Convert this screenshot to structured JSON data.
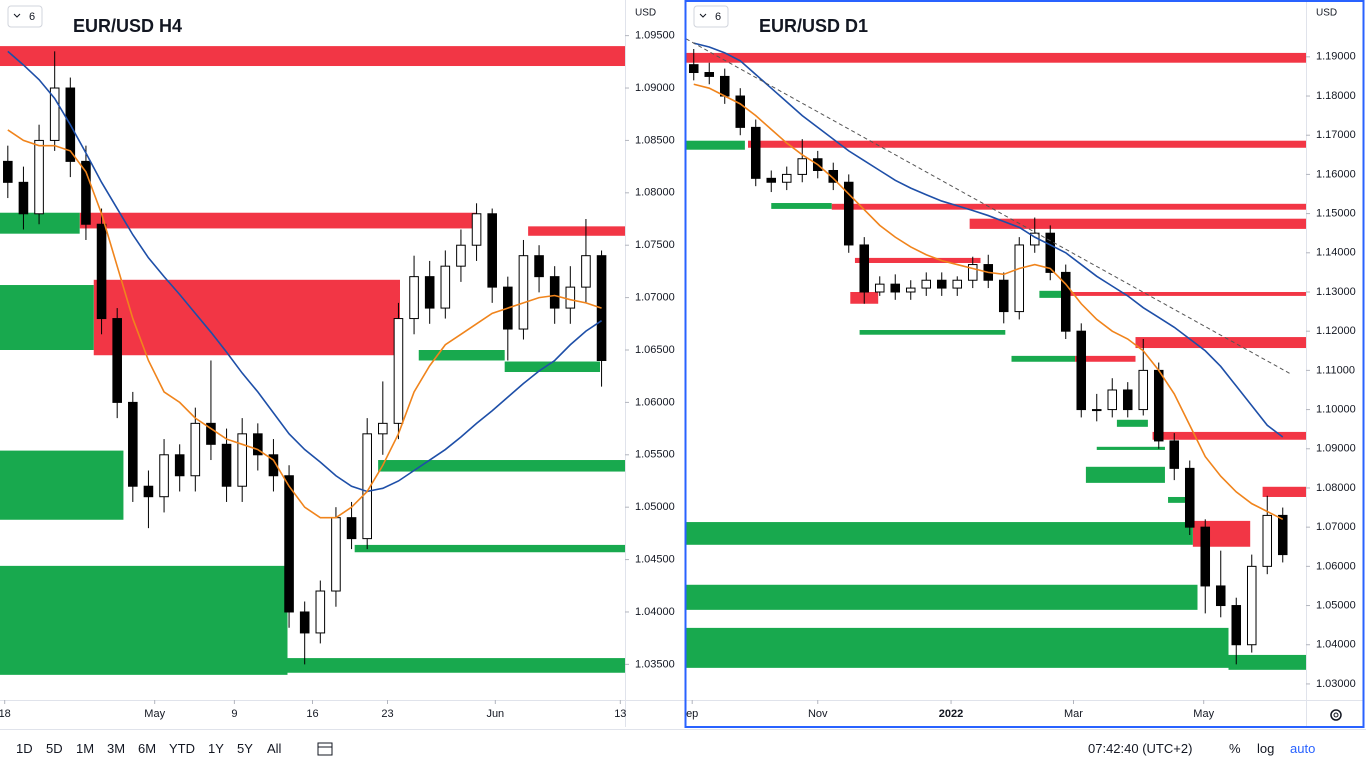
{
  "chart_data": [
    {
      "type": "candlestick",
      "title": "EUR/USD H4",
      "selector": "6",
      "y_unit": "USD",
      "candle_color": "#000000",
      "xlim": [
        0,
        40
      ],
      "ylim": [
        1.0316,
        1.0984
      ],
      "xticks": [
        {
          "value": 0.3,
          "label": "18"
        },
        {
          "value": 9.9,
          "label": "May"
        },
        {
          "value": 15,
          "label": "9"
        },
        {
          "value": 20,
          "label": "16"
        },
        {
          "value": 24.8,
          "label": "23"
        },
        {
          "value": 31.7,
          "label": "Jun"
        },
        {
          "value": 39.7,
          "label": "13"
        }
      ],
      "yticks": [
        {
          "value": 1.035,
          "label": "1.03500"
        },
        {
          "value": 1.04,
          "label": "1.04000"
        },
        {
          "value": 1.045,
          "label": "1.04500"
        },
        {
          "value": 1.05,
          "label": "1.05000"
        },
        {
          "value": 1.055,
          "label": "1.05500"
        },
        {
          "value": 1.06,
          "label": "1.06000"
        },
        {
          "value": 1.065,
          "label": "1.06500"
        },
        {
          "value": 1.07,
          "label": "1.07000"
        },
        {
          "value": 1.075,
          "label": "1.07500"
        },
        {
          "value": 1.08,
          "label": "1.08000"
        },
        {
          "value": 1.085,
          "label": "1.08500"
        },
        {
          "value": 1.09,
          "label": "1.09000"
        },
        {
          "value": 1.095,
          "label": "1.09500"
        }
      ],
      "open": [
        1.083,
        1.081,
        1.078,
        1.085,
        1.09,
        1.083,
        1.077,
        1.068,
        1.06,
        1.052,
        1.051,
        1.055,
        1.053,
        1.058,
        1.056,
        1.052,
        1.057,
        1.055,
        1.053,
        1.04,
        1.038,
        1.042,
        1.049,
        1.047,
        1.057,
        1.058,
        1.068,
        1.072,
        1.069,
        1.073,
        1.075,
        1.078,
        1.071,
        1.067,
        1.074,
        1.072,
        1.069,
        1.071,
        1.074
      ],
      "high": [
        1.0845,
        1.0825,
        1.0865,
        1.0935,
        1.091,
        1.0845,
        1.0785,
        1.069,
        1.061,
        1.0535,
        1.0565,
        1.056,
        1.0595,
        1.064,
        1.0575,
        1.0585,
        1.058,
        1.0565,
        1.054,
        1.041,
        1.043,
        1.05,
        1.0505,
        1.0585,
        1.062,
        1.0695,
        1.074,
        1.0735,
        1.0745,
        1.0765,
        1.079,
        1.0785,
        1.072,
        1.0755,
        1.075,
        1.073,
        1.073,
        1.0775,
        1.0745
      ],
      "low": [
        1.0795,
        1.0765,
        1.077,
        1.084,
        1.0815,
        1.0755,
        1.0665,
        1.0585,
        1.0505,
        1.048,
        1.0495,
        1.0515,
        1.0515,
        1.0545,
        1.0505,
        1.0505,
        1.0535,
        1.0515,
        1.0385,
        1.035,
        1.037,
        1.0405,
        1.046,
        1.046,
        1.055,
        1.0565,
        1.0665,
        1.0675,
        1.068,
        1.0715,
        1.0735,
        1.0695,
        1.064,
        1.066,
        1.0705,
        1.0675,
        1.0675,
        1.0695,
        1.0615
      ],
      "close": [
        1.081,
        1.078,
        1.085,
        1.09,
        1.083,
        1.077,
        1.068,
        1.06,
        1.052,
        1.051,
        1.055,
        1.053,
        1.058,
        1.056,
        1.052,
        1.057,
        1.055,
        1.053,
        1.04,
        1.038,
        1.042,
        1.049,
        1.047,
        1.057,
        1.058,
        1.068,
        1.072,
        1.069,
        1.073,
        1.075,
        1.078,
        1.071,
        1.067,
        1.074,
        1.072,
        1.069,
        1.071,
        1.074,
        1.064
      ],
      "series": [
        {
          "color": "#1e4fa8",
          "values": [
            1.0935,
            1.0922,
            1.0908,
            1.089,
            1.0865,
            1.0838,
            1.081,
            1.0785,
            1.076,
            1.0738,
            1.072,
            1.0703,
            1.0685,
            1.0667,
            1.0648,
            1.0628,
            1.061,
            1.059,
            1.057,
            1.0555,
            1.0543,
            1.053,
            1.052,
            1.0515,
            1.0518,
            1.0525,
            1.0535,
            1.0545,
            1.0555,
            1.0567,
            1.058,
            1.0592,
            1.0605,
            1.0618,
            1.063,
            1.064,
            1.0655,
            1.0668,
            1.0678
          ]
        },
        {
          "color": "#f0841c",
          "values": [
            1.086,
            1.085,
            1.0845,
            1.0845,
            1.084,
            1.082,
            1.078,
            1.073,
            1.068,
            1.064,
            1.061,
            1.06,
            1.0585,
            1.0575,
            1.0565,
            1.056,
            1.0555,
            1.0545,
            1.052,
            1.05,
            1.049,
            1.049,
            1.05,
            1.0515,
            1.054,
            1.057,
            1.061,
            1.0635,
            1.0655,
            1.0665,
            1.0675,
            1.0685,
            1.069,
            1.0695,
            1.07,
            1.0702,
            1.0698,
            1.0695,
            1.069
          ]
        }
      ],
      "zones": [
        {
          "color": "#f23645",
          "top": 1.094,
          "bottom": 1.0921,
          "x_range": [
            0,
            40
          ]
        },
        {
          "color": "#f23645",
          "top": 1.0781,
          "bottom": 1.0766,
          "x_range": [
            5.1,
            30.5
          ]
        },
        {
          "color": "#f23645",
          "top": 1.0768,
          "bottom": 1.0759,
          "x_range": [
            33.8,
            40
          ]
        },
        {
          "color": "#f23645",
          "top": 1.0717,
          "bottom": 1.0645,
          "x_range": [
            6.0,
            25.6
          ]
        },
        {
          "color": "#18a94e",
          "top": 1.0781,
          "bottom": 1.0761,
          "x_range": [
            0,
            5.1
          ]
        },
        {
          "color": "#18a94e",
          "top": 1.0712,
          "bottom": 1.065,
          "x_range": [
            0,
            6.0
          ]
        },
        {
          "color": "#18a94e",
          "top": 1.065,
          "bottom": 1.064,
          "x_range": [
            26.8,
            32.3
          ]
        },
        {
          "color": "#18a94e",
          "top": 1.0639,
          "bottom": 1.0629,
          "x_range": [
            32.3,
            38.4
          ]
        },
        {
          "color": "#18a94e",
          "top": 1.0554,
          "bottom": 1.0488,
          "x_range": [
            0,
            7.9
          ]
        },
        {
          "color": "#18a94e",
          "top": 1.0545,
          "bottom": 1.0534,
          "x_range": [
            24.2,
            40
          ]
        },
        {
          "color": "#18a94e",
          "top": 1.0464,
          "bottom": 1.0457,
          "x_range": [
            22.7,
            40
          ]
        },
        {
          "color": "#18a94e",
          "top": 1.0444,
          "bottom": 1.034,
          "x_range": [
            0,
            18.4
          ]
        },
        {
          "color": "#18a94e",
          "top": 1.0356,
          "bottom": 1.0342,
          "x_range": [
            18.4,
            40
          ]
        }
      ]
    },
    {
      "type": "candlestick",
      "title": "EUR/USD D1",
      "selector": "6",
      "y_unit": "USD",
      "candle_color": "#000000",
      "xlim": [
        0,
        40
      ],
      "ylim": [
        1.0259,
        1.2045
      ],
      "xticks": [
        {
          "value": 0.4,
          "label": "ep"
        },
        {
          "value": 8.5,
          "label": "Nov"
        },
        {
          "value": 17.1,
          "label": "2022"
        },
        {
          "value": 25.0,
          "label": "Mar"
        },
        {
          "value": 33.4,
          "label": "May"
        }
      ],
      "yticks": [
        {
          "value": 1.03,
          "label": "1.03000"
        },
        {
          "value": 1.04,
          "label": "1.04000"
        },
        {
          "value": 1.05,
          "label": "1.05000"
        },
        {
          "value": 1.06,
          "label": "1.06000"
        },
        {
          "value": 1.07,
          "label": "1.07000"
        },
        {
          "value": 1.08,
          "label": "1.08000"
        },
        {
          "value": 1.09,
          "label": "1.09000"
        },
        {
          "value": 1.1,
          "label": "1.10000"
        },
        {
          "value": 1.11,
          "label": "1.11000"
        },
        {
          "value": 1.12,
          "label": "1.12000"
        },
        {
          "value": 1.13,
          "label": "1.13000"
        },
        {
          "value": 1.14,
          "label": "1.14000"
        },
        {
          "value": 1.15,
          "label": "1.15000"
        },
        {
          "value": 1.16,
          "label": "1.16000"
        },
        {
          "value": 1.17,
          "label": "1.17000"
        },
        {
          "value": 1.18,
          "label": "1.18000"
        },
        {
          "value": 1.19,
          "label": "1.19000"
        }
      ],
      "open": [
        1.188,
        1.186,
        1.185,
        1.18,
        1.172,
        1.159,
        1.158,
        1.16,
        1.164,
        1.161,
        1.158,
        1.142,
        1.13,
        1.132,
        1.13,
        1.131,
        1.133,
        1.131,
        1.133,
        1.137,
        1.133,
        1.125,
        1.142,
        1.145,
        1.135,
        1.12,
        1.1,
        1.1,
        1.105,
        1.1,
        1.11,
        1.092,
        1.085,
        1.07,
        1.055,
        1.05,
        1.04,
        1.06,
        1.073
      ],
      "high": [
        1.192,
        1.1885,
        1.187,
        1.182,
        1.174,
        1.161,
        1.162,
        1.169,
        1.166,
        1.163,
        1.16,
        1.144,
        1.134,
        1.1345,
        1.133,
        1.135,
        1.135,
        1.134,
        1.139,
        1.1395,
        1.135,
        1.144,
        1.149,
        1.147,
        1.137,
        1.122,
        1.104,
        1.108,
        1.107,
        1.118,
        1.112,
        1.094,
        1.087,
        1.072,
        1.064,
        1.052,
        1.063,
        1.078,
        1.075
      ],
      "low": [
        1.184,
        1.183,
        1.178,
        1.17,
        1.157,
        1.1555,
        1.156,
        1.158,
        1.159,
        1.156,
        1.14,
        1.127,
        1.129,
        1.128,
        1.128,
        1.129,
        1.129,
        1.129,
        1.131,
        1.131,
        1.122,
        1.123,
        1.14,
        1.133,
        1.118,
        1.098,
        1.097,
        1.098,
        1.098,
        1.0985,
        1.09,
        1.082,
        1.068,
        1.048,
        1.047,
        1.035,
        1.038,
        1.058,
        1.061
      ],
      "close": [
        1.186,
        1.185,
        1.18,
        1.172,
        1.159,
        1.158,
        1.16,
        1.164,
        1.161,
        1.158,
        1.142,
        1.13,
        1.132,
        1.13,
        1.131,
        1.133,
        1.131,
        1.133,
        1.137,
        1.133,
        1.125,
        1.142,
        1.145,
        1.135,
        1.12,
        1.1,
        1.1,
        1.105,
        1.1,
        1.11,
        1.092,
        1.085,
        1.07,
        1.055,
        1.05,
        1.04,
        1.06,
        1.073,
        1.063
      ],
      "series": [
        {
          "color": "#1e4fa8",
          "values": [
            1.1935,
            1.1925,
            1.191,
            1.189,
            1.1855,
            1.182,
            1.1785,
            1.175,
            1.172,
            1.169,
            1.166,
            1.1635,
            1.161,
            1.1585,
            1.1565,
            1.1548,
            1.1532,
            1.152,
            1.1508,
            1.1495,
            1.148,
            1.1465,
            1.144,
            1.142,
            1.14,
            1.137,
            1.134,
            1.1315,
            1.129,
            1.126,
            1.1235,
            1.121,
            1.118,
            1.115,
            1.111,
            1.106,
            1.101,
            1.096,
            1.093
          ]
        },
        {
          "color": "#f0841c",
          "values": [
            1.183,
            1.182,
            1.18,
            1.178,
            1.175,
            1.1715,
            1.168,
            1.165,
            1.1625,
            1.159,
            1.155,
            1.151,
            1.147,
            1.144,
            1.1415,
            1.1395,
            1.138,
            1.137,
            1.136,
            1.135,
            1.1345,
            1.136,
            1.137,
            1.136,
            1.132,
            1.127,
            1.123,
            1.12,
            1.118,
            1.115,
            1.11,
            1.104,
            1.096,
            1.088,
            1.083,
            1.079,
            1.076,
            1.074,
            1.072
          ]
        }
      ],
      "trendline": {
        "color": "#555555",
        "x": [
          0,
          39.1
        ],
        "y": [
          1.1946,
          1.1089
        ]
      },
      "zones": [
        {
          "color": "#f23645",
          "top": 1.191,
          "bottom": 1.1885,
          "x_range": [
            0,
            40
          ]
        },
        {
          "color": "#f23645",
          "top": 1.1686,
          "bottom": 1.1668,
          "x_range": [
            4.0,
            40
          ]
        },
        {
          "color": "#18a94e",
          "top": 1.1686,
          "bottom": 1.1663,
          "x_range": [
            0,
            3.8
          ]
        },
        {
          "color": "#f23645",
          "top": 1.1525,
          "bottom": 1.151,
          "x_range": [
            9.4,
            40
          ]
        },
        {
          "color": "#18a94e",
          "top": 1.1527,
          "bottom": 1.1512,
          "x_range": [
            5.5,
            9.4
          ]
        },
        {
          "color": "#f23645",
          "top": 1.1487,
          "bottom": 1.1461,
          "x_range": [
            18.3,
            40
          ]
        },
        {
          "color": "#f23645",
          "top": 1.1387,
          "bottom": 1.1374,
          "x_range": [
            10.9,
            19.0
          ]
        },
        {
          "color": "#f23645",
          "top": 1.13,
          "bottom": 1.127,
          "x_range": [
            10.6,
            12.4
          ]
        },
        {
          "color": "#18a94e",
          "top": 1.1203,
          "bottom": 1.1191,
          "x_range": [
            11.2,
            20.6
          ]
        },
        {
          "color": "#f23645",
          "top": 1.13,
          "bottom": 1.129,
          "x_range": [
            24.5,
            40
          ]
        },
        {
          "color": "#18a94e",
          "top": 1.1303,
          "bottom": 1.1285,
          "x_range": [
            22.8,
            24.5
          ]
        },
        {
          "color": "#18a94e",
          "top": 1.1137,
          "bottom": 1.1122,
          "x_range": [
            21.0,
            25.1
          ]
        },
        {
          "color": "#f23645",
          "top": 1.1137,
          "bottom": 1.1122,
          "x_range": [
            25.1,
            29.0
          ]
        },
        {
          "color": "#f23645",
          "top": 1.1185,
          "bottom": 1.1157,
          "x_range": [
            29.0,
            40
          ]
        },
        {
          "color": "#18a94e",
          "top": 1.0974,
          "bottom": 1.0956,
          "x_range": [
            27.8,
            29.8
          ]
        },
        {
          "color": "#18a94e",
          "top": 1.0905,
          "bottom": 1.0897,
          "x_range": [
            26.5,
            30.9
          ]
        },
        {
          "color": "#f23645",
          "top": 1.0943,
          "bottom": 1.0923,
          "x_range": [
            30.1,
            40
          ]
        },
        {
          "color": "#18a94e",
          "top": 1.0854,
          "bottom": 1.0813,
          "x_range": [
            25.8,
            30.9
          ]
        },
        {
          "color": "#18a94e",
          "top": 1.0777,
          "bottom": 1.0762,
          "x_range": [
            31.1,
            32.4
          ]
        },
        {
          "color": "#f23645",
          "top": 1.0803,
          "bottom": 1.0777,
          "x_range": [
            37.2,
            40
          ]
        },
        {
          "color": "#f23645",
          "top": 1.0716,
          "bottom": 1.065,
          "x_range": [
            32.7,
            36.4
          ]
        },
        {
          "color": "#18a94e",
          "top": 1.0713,
          "bottom": 1.0655,
          "x_range": [
            0,
            32.7
          ]
        },
        {
          "color": "#18a94e",
          "top": 1.0553,
          "bottom": 1.0489,
          "x_range": [
            0,
            33.0
          ]
        },
        {
          "color": "#18a94e",
          "top": 1.0443,
          "bottom": 1.0341,
          "x_range": [
            0,
            35.0
          ]
        },
        {
          "color": "#18a94e",
          "top": 1.0374,
          "bottom": 1.0336,
          "x_range": [
            35.0,
            40
          ]
        }
      ]
    }
  ],
  "toolbar": {
    "ranges": [
      "1D",
      "5D",
      "1M",
      "3M",
      "6M",
      "YTD",
      "1Y",
      "5Y",
      "All"
    ],
    "time": "07:42:40 (UTC+2)",
    "percent": "%",
    "log": "log",
    "auto": "auto"
  }
}
